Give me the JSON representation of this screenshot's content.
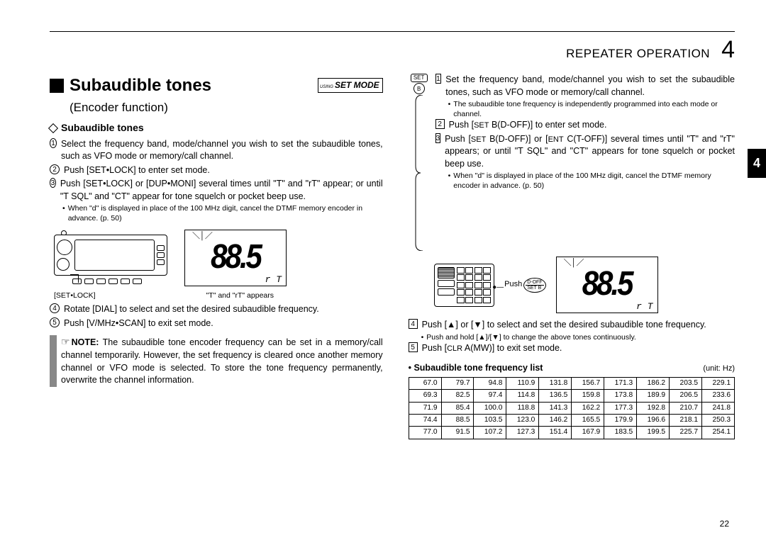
{
  "header": {
    "title": "REPEATER OPERATION",
    "chapter": "4"
  },
  "side_tab": "4",
  "page_number": "22",
  "set_mode_badge": {
    "using": "USING",
    "text": "SET MODE"
  },
  "section": {
    "title": "Subaudible tones",
    "subtitle": "(Encoder function)",
    "sub_heading": "Subaudible tones"
  },
  "left": {
    "s1": "Select the frequency band, mode/channel you wish to set the subaudible tones, such as VFO mode or memory/call channel.",
    "s2": "Push [SET•LOCK] to enter set mode.",
    "s3": "Push [SET•LOCK] or [DUP•MONI] several times until \"T\" and \"rT\" appear; or until \"T SQL\" and \"CT\" appear for tone squelch or pocket beep use.",
    "s3b": "When \"d\" is displayed in place of the 100 MHz digit, cancel the DTMF memory encoder in advance. (p. 50)",
    "illus_label_left": "[SET•LOCK]",
    "illus_label_right": "\"T\" and \"rT\" appears",
    "lcd_digits": "88.5",
    "lcd_sub": "r  T",
    "s4": "Rotate [DIAL] to select and set the desired subaudible frequency.",
    "s5": "Push [V/MHz•SCAN] to exit set mode.",
    "note": "The subaudible tone encoder frequency can be set in a memory/call channel temporarily. However, the set frequency is cleared once another memory channel or VFO mode is selected. To store the tone frequency permanently, overwrite the channel information.",
    "note_lead": "NOTE:"
  },
  "right": {
    "mic_key_top": "SET",
    "mic_key_bot": "B",
    "s1": "Set the frequency band, mode/channel you wish to set the subaudible tones, such as VFO mode or memory/call channel.",
    "s1b": "The subaudible tone frequency is independently programmed into each mode or channel.",
    "s2a": "Push ",
    "s2_key1": "SET",
    "s2b": " B(D-OFF)] to enter set mode.",
    "s3a": "Push ",
    "s3_key1": "SET",
    "s3b": " B(D-OFF)] or ",
    "s3_key2": "ENT",
    "s3c": " C(T-OFF)] several times until \"T\" and \"rT\" appears; or until \"T SQL\" and \"CT\" appears for tone squelch or pocket beep use.",
    "s3sub": "When \"d\" is displayed in place of the 100 MHz digit, cancel the DTMF memory encoder in advance. (p. 50)",
    "push_label": "Push",
    "push_key_top": "D-OFF",
    "push_key_bot": "SET B",
    "lcd_digits": "88.5",
    "lcd_sub": "r  T",
    "s4": "Push [▲] or [▼] to select and set the desired subaudible tone frequency.",
    "s4sub": "Push and hold [▲]/[▼] to change the above tones continuously.",
    "s5a": "Push ",
    "s5_key": "CLR",
    "s5b": " A(MW)] to exit set mode."
  },
  "freq": {
    "title": "• Subaudible tone frequency list",
    "unit": "(unit: Hz)",
    "rows": [
      [
        "67.0",
        "79.7",
        "94.8",
        "110.9",
        "131.8",
        "156.7",
        "171.3",
        "186.2",
        "203.5",
        "229.1"
      ],
      [
        "69.3",
        "82.5",
        "97.4",
        "114.8",
        "136.5",
        "159.8",
        "173.8",
        "189.9",
        "206.5",
        "233.6"
      ],
      [
        "71.9",
        "85.4",
        "100.0",
        "118.8",
        "141.3",
        "162.2",
        "177.3",
        "192.8",
        "210.7",
        "241.8"
      ],
      [
        "74.4",
        "88.5",
        "103.5",
        "123.0",
        "146.2",
        "165.5",
        "179.9",
        "196.6",
        "218.1",
        "250.3"
      ],
      [
        "77.0",
        "91.5",
        "107.2",
        "127.3",
        "151.4",
        "167.9",
        "183.5",
        "199.5",
        "225.7",
        "254.1"
      ]
    ]
  }
}
